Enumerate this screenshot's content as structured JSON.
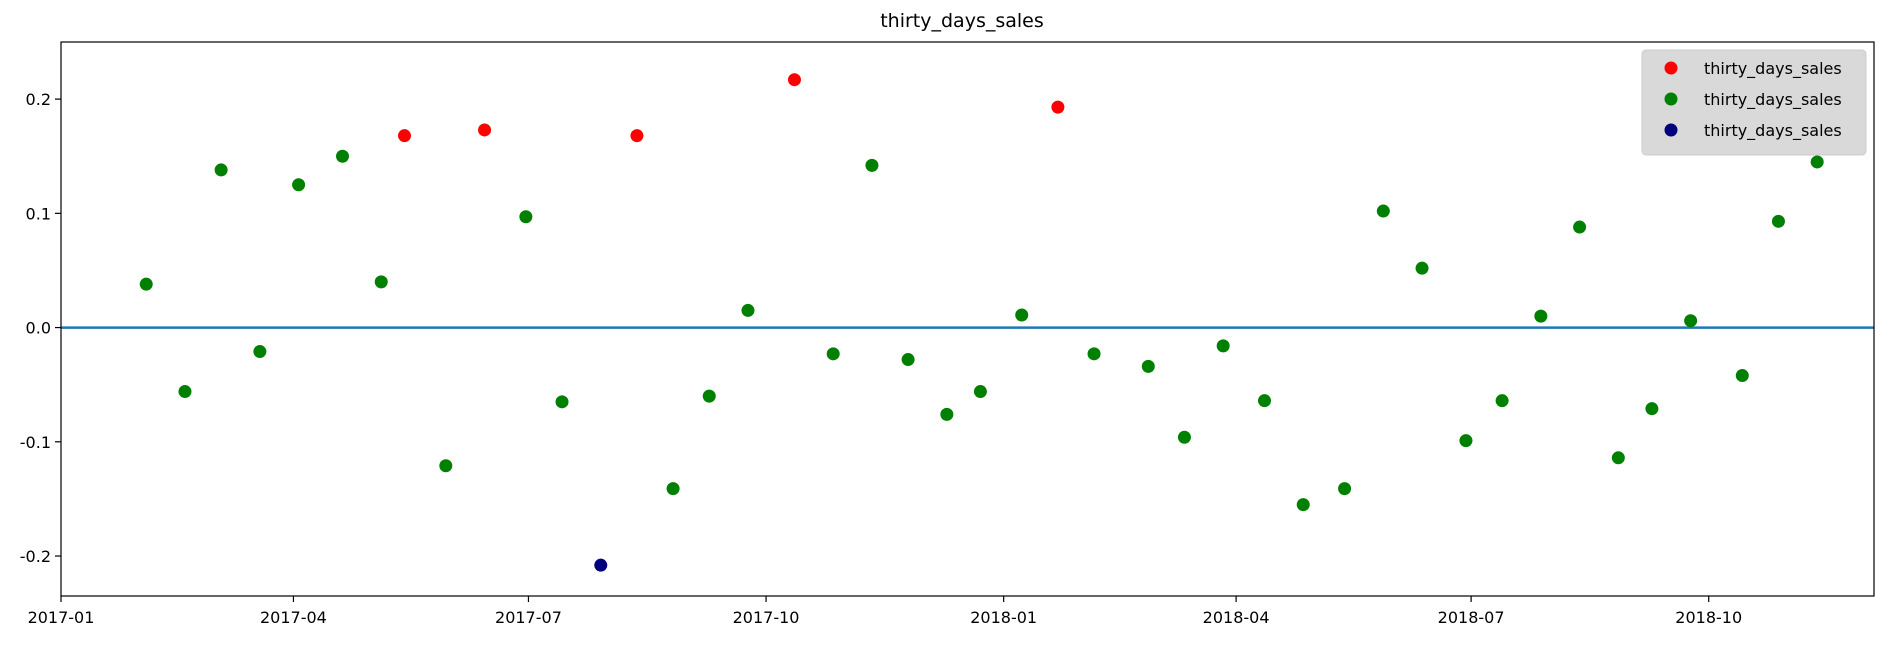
{
  "chart_data": {
    "type": "scatter",
    "title": "thirty_days_sales",
    "xlabel": "",
    "ylabel": "",
    "xlim": [
      "2017-01-01",
      "2018-12-04"
    ],
    "ylim": [
      -0.235,
      0.25
    ],
    "x_ticks": [
      "2017-01",
      "2017-04",
      "2017-07",
      "2017-10",
      "2018-01",
      "2018-04",
      "2018-07",
      "2018-10"
    ],
    "y_ticks": [
      -0.2,
      -0.1,
      0.0,
      0.1,
      0.2
    ],
    "y_tick_labels": [
      "-0.2",
      "-0.1",
      "0.0",
      "0.1",
      "0.2"
    ],
    "grid": false,
    "legend_position": "top-right",
    "reference_line": {
      "y": 0.0,
      "color": "#1f77b4"
    },
    "series": [
      {
        "name": "thirty_days_sales",
        "color": "#ff0000",
        "points": [
          {
            "x": "2017-05-14",
            "y": 0.168
          },
          {
            "x": "2017-06-14",
            "y": 0.173
          },
          {
            "x": "2017-08-12",
            "y": 0.168
          },
          {
            "x": "2017-10-12",
            "y": 0.217
          },
          {
            "x": "2018-01-22",
            "y": 0.193
          }
        ]
      },
      {
        "name": "thirty_days_sales",
        "color": "#008000",
        "points": [
          {
            "x": "2017-02-03",
            "y": 0.038
          },
          {
            "x": "2017-02-18",
            "y": -0.056
          },
          {
            "x": "2017-03-04",
            "y": 0.138
          },
          {
            "x": "2017-03-19",
            "y": -0.021
          },
          {
            "x": "2017-04-03",
            "y": 0.125
          },
          {
            "x": "2017-04-20",
            "y": 0.15
          },
          {
            "x": "2017-05-05",
            "y": 0.04
          },
          {
            "x": "2017-05-30",
            "y": -0.121
          },
          {
            "x": "2017-06-30",
            "y": 0.097
          },
          {
            "x": "2017-07-14",
            "y": -0.065
          },
          {
            "x": "2017-08-26",
            "y": -0.141
          },
          {
            "x": "2017-09-09",
            "y": -0.06
          },
          {
            "x": "2017-09-24",
            "y": 0.015
          },
          {
            "x": "2017-10-27",
            "y": -0.023
          },
          {
            "x": "2017-11-11",
            "y": 0.142
          },
          {
            "x": "2017-11-25",
            "y": -0.028
          },
          {
            "x": "2017-12-10",
            "y": -0.076
          },
          {
            "x": "2017-12-23",
            "y": -0.056
          },
          {
            "x": "2018-01-08",
            "y": 0.011
          },
          {
            "x": "2018-02-05",
            "y": -0.023
          },
          {
            "x": "2018-02-26",
            "y": -0.034
          },
          {
            "x": "2018-03-12",
            "y": -0.096
          },
          {
            "x": "2018-03-27",
            "y": -0.016
          },
          {
            "x": "2018-04-12",
            "y": -0.064
          },
          {
            "x": "2018-04-27",
            "y": -0.155
          },
          {
            "x": "2018-05-13",
            "y": -0.141
          },
          {
            "x": "2018-05-28",
            "y": 0.102
          },
          {
            "x": "2018-06-12",
            "y": 0.052
          },
          {
            "x": "2018-06-29",
            "y": -0.099
          },
          {
            "x": "2018-07-13",
            "y": -0.064
          },
          {
            "x": "2018-07-28",
            "y": 0.01
          },
          {
            "x": "2018-08-12",
            "y": 0.088
          },
          {
            "x": "2018-08-27",
            "y": -0.114
          },
          {
            "x": "2018-09-09",
            "y": -0.071
          },
          {
            "x": "2018-09-24",
            "y": 0.006
          },
          {
            "x": "2018-10-14",
            "y": -0.042
          },
          {
            "x": "2018-10-28",
            "y": 0.093
          },
          {
            "x": "2018-11-12",
            "y": 0.145
          }
        ]
      },
      {
        "name": "thirty_days_sales",
        "color": "#00007f",
        "points": [
          {
            "x": "2017-07-29",
            "y": -0.208
          }
        ]
      }
    ]
  }
}
